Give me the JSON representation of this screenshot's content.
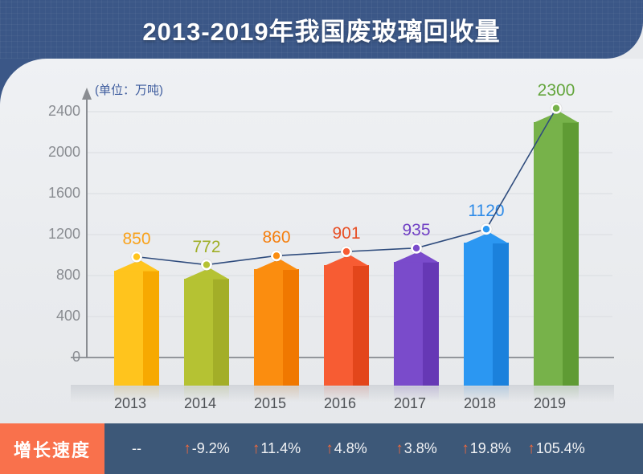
{
  "header": {
    "title": "2013-2019年我国废玻璃回收量"
  },
  "chart": {
    "unit_label": "(单位：万吨)",
    "y_ticks": [
      0,
      400,
      800,
      1200,
      1600,
      2000,
      2400
    ]
  },
  "chart_data": {
    "type": "bar",
    "title": "2013-2019年我国废玻璃回收量",
    "unit": "万吨",
    "categories": [
      "2013",
      "2014",
      "2015",
      "2016",
      "2017",
      "2018",
      "2019"
    ],
    "series": [
      {
        "name": "废玻璃回收量(万吨)",
        "type": "bar",
        "values": [
          850,
          772,
          860,
          901,
          935,
          1120,
          2300
        ]
      },
      {
        "name": "增长速度(%)",
        "type": "row",
        "values": [
          null,
          -9.2,
          11.4,
          4.8,
          3.8,
          19.8,
          105.4
        ]
      }
    ],
    "ylim": [
      0,
      2400
    ],
    "grid": true,
    "legend_position": "none",
    "value_labels": [
      "850",
      "772",
      "860",
      "901",
      "935",
      "1120",
      "2300"
    ]
  },
  "footer": {
    "label": "增长速度",
    "arrow_char": "↑",
    "cells": [
      {
        "text": "--",
        "arrow": false
      },
      {
        "text": "-9.2%",
        "arrow": true
      },
      {
        "text": "11.4%",
        "arrow": true
      },
      {
        "text": "4.8%",
        "arrow": true
      },
      {
        "text": "3.8%",
        "arrow": true
      },
      {
        "text": "19.8%",
        "arrow": true
      },
      {
        "text": "105.4%",
        "arrow": true
      }
    ]
  },
  "colors": {
    "header_bg": "#3B5787",
    "footer_bg": "#3D5878",
    "footer_label_bg": "#F9714C",
    "arrow": "#F4693C",
    "line": "#2F4C7D",
    "grid_line": "#D9DCE0",
    "zero_line": "#92969B",
    "axis": "#8A8D92",
    "bars": [
      {
        "front": "#FFC41D",
        "side": "#F7A901",
        "label": "#F9A21B"
      },
      {
        "front": "#B5C233",
        "side": "#A3AE28",
        "label": "#9FAE26"
      },
      {
        "front": "#FB8D0F",
        "side": "#F07800",
        "label": "#F57F0E"
      },
      {
        "front": "#F75C33",
        "side": "#E3461B",
        "label": "#E74E24"
      },
      {
        "front": "#7A4BCB",
        "side": "#6638B5",
        "label": "#7040C4"
      },
      {
        "front": "#2B97F2",
        "side": "#1B81DC",
        "label": "#2E8BE8"
      },
      {
        "front": "#77B24A",
        "side": "#5F9B34",
        "label": "#63A53C"
      }
    ]
  }
}
